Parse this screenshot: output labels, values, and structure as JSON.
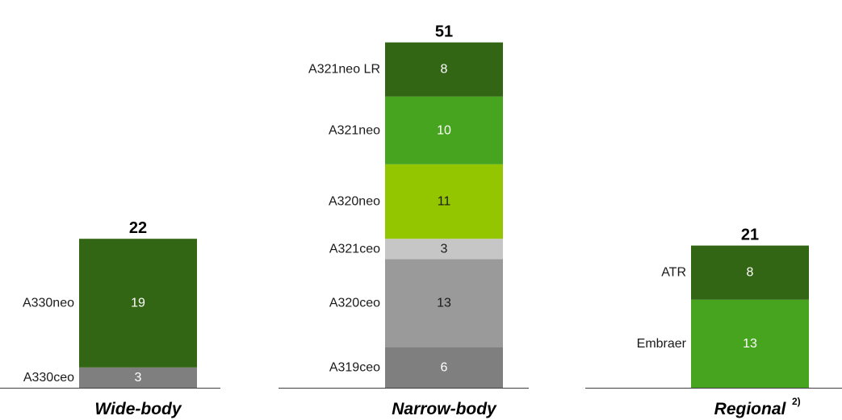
{
  "chart_data": {
    "type": "bar",
    "stacked": true,
    "groups": [
      {
        "category": "Wide-body",
        "category_superscript": "",
        "total": 22,
        "segments": [
          {
            "name": "A330ceo",
            "value": 3,
            "color": "#7f7f7f",
            "text_color": "#ffffff"
          },
          {
            "name": "A330neo",
            "value": 19,
            "color": "#336614",
            "text_color": "#ffffff"
          }
        ]
      },
      {
        "category": "Narrow-body",
        "category_superscript": "",
        "total": 51,
        "segments": [
          {
            "name": "A319ceo",
            "value": 6,
            "color": "#7f7f7f",
            "text_color": "#ffffff"
          },
          {
            "name": "A320ceo",
            "value": 13,
            "color": "#9a9a9a",
            "text_color": "#1a1a1a"
          },
          {
            "name": "A321ceo",
            "value": 3,
            "color": "#c6c6c6",
            "text_color": "#1a1a1a"
          },
          {
            "name": "A320neo",
            "value": 11,
            "color": "#94c600",
            "text_color": "#1a1a1a"
          },
          {
            "name": "A321neo",
            "value": 10,
            "color": "#46a41e",
            "text_color": "#ffffff"
          },
          {
            "name": "A321neo LR",
            "value": 8,
            "color": "#336614",
            "text_color": "#ffffff"
          }
        ]
      },
      {
        "category": "Regional",
        "category_superscript": "2)",
        "total": 21,
        "segments": [
          {
            "name": "Embraer",
            "value": 13,
            "color": "#46a41e",
            "text_color": "#ffffff"
          },
          {
            "name": "ATR",
            "value": 8,
            "color": "#336614",
            "text_color": "#ffffff"
          }
        ]
      }
    ]
  }
}
